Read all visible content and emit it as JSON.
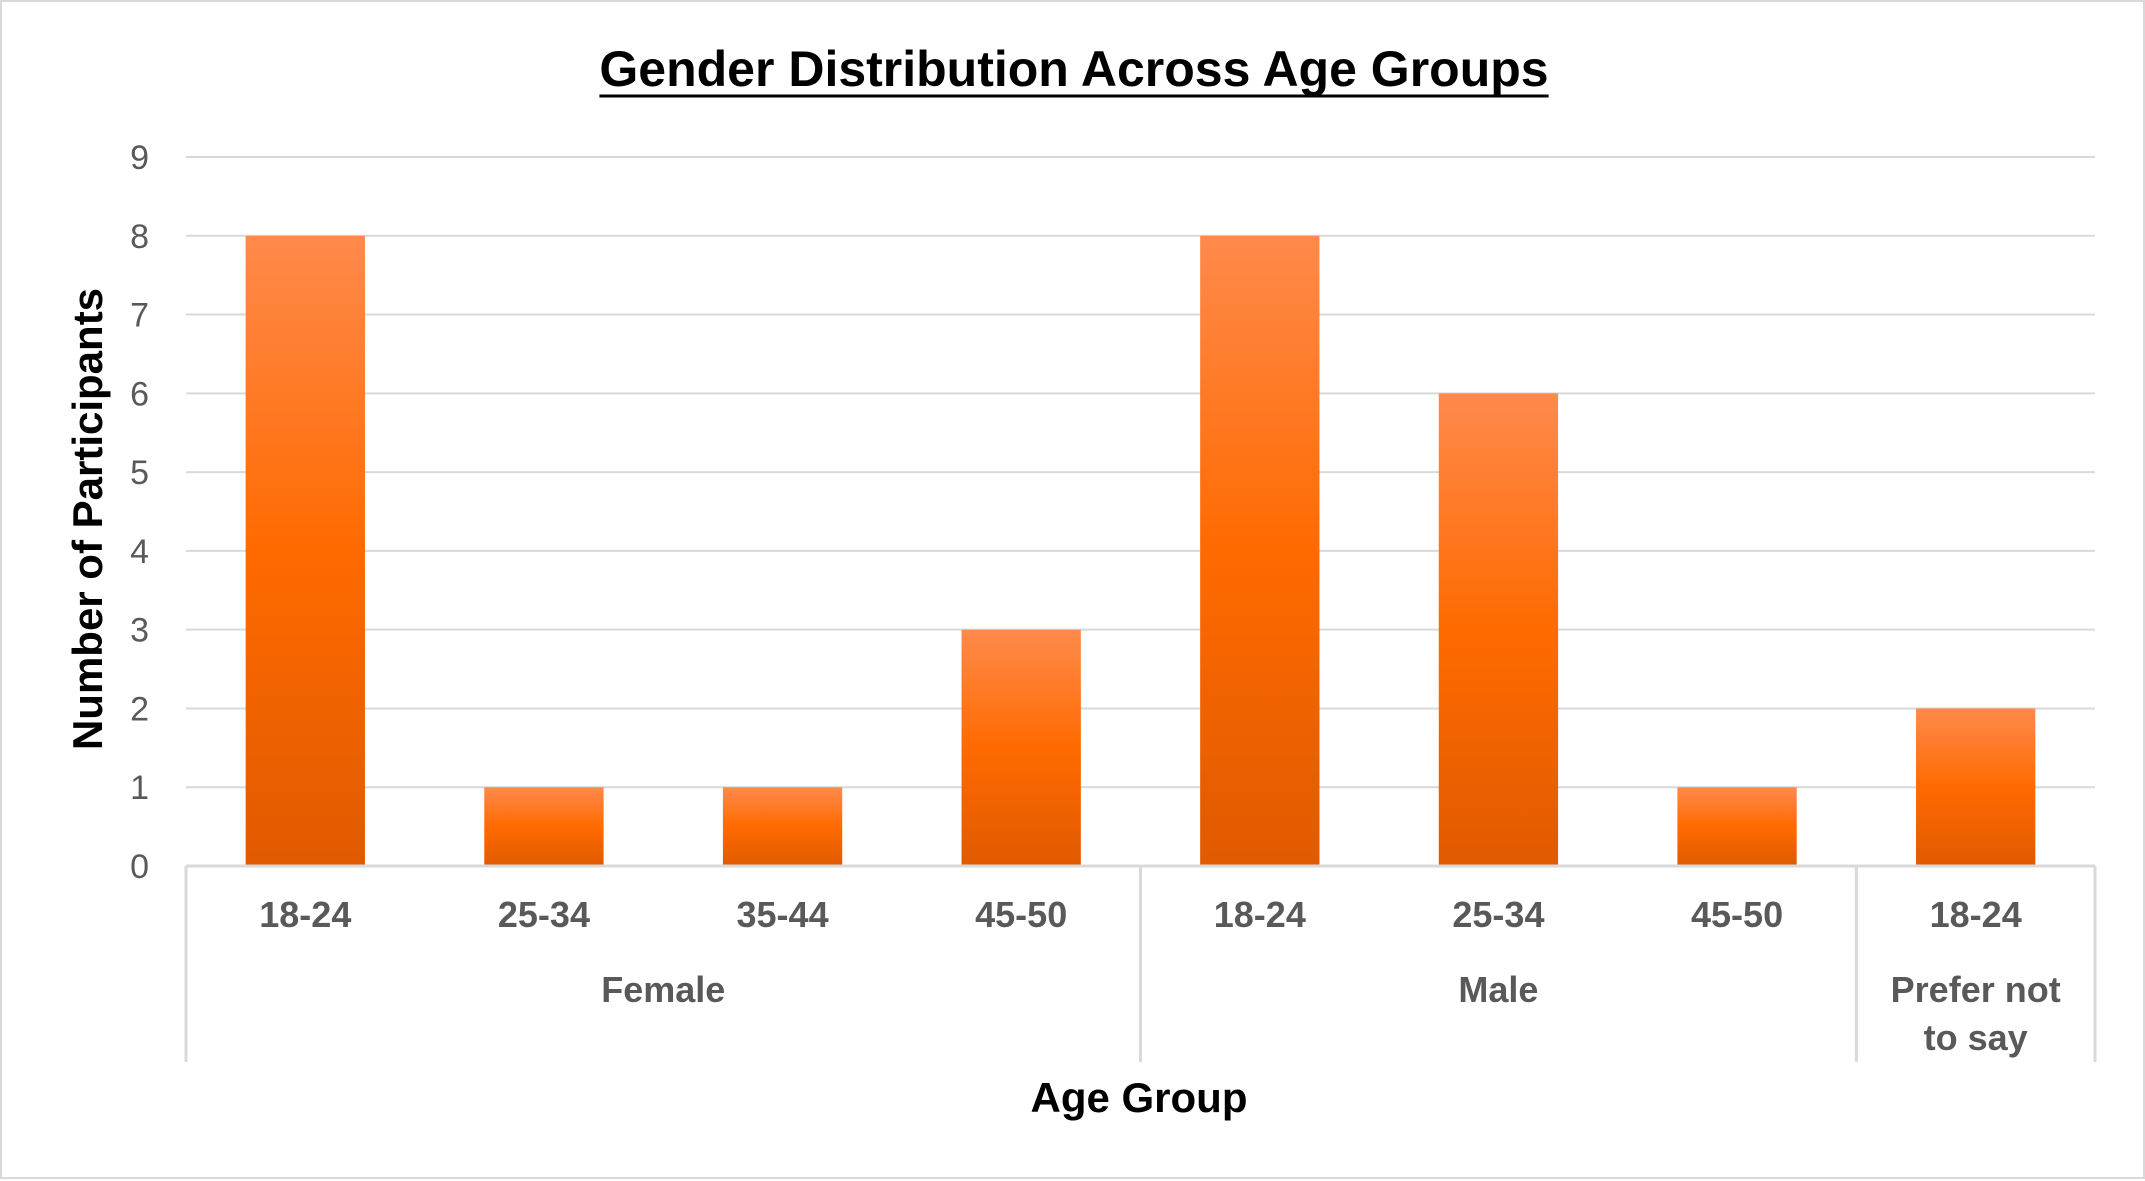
{
  "chart_data": {
    "type": "bar",
    "title": "Gender Distribution Across Age Groups",
    "xlabel": "Age Group",
    "ylabel": "Number of Participants",
    "ylim": [
      0,
      9
    ],
    "yticks": [
      "0",
      "1",
      "2",
      "3",
      "4",
      "5",
      "6",
      "7",
      "8",
      "9"
    ],
    "grid": true,
    "legend": "none",
    "groups": [
      {
        "name": "Female",
        "categories": [
          "18-24",
          "25-34",
          "35-44",
          "45-50"
        ],
        "values": [
          8,
          1,
          1,
          3
        ]
      },
      {
        "name": "Male",
        "categories": [
          "18-24",
          "25-34",
          "45-50"
        ],
        "values": [
          8,
          6,
          1
        ]
      },
      {
        "name": "Prefer not to say",
        "name_lines": [
          "Prefer not",
          "to say"
        ],
        "categories": [
          "18-24"
        ],
        "values": [
          2
        ]
      }
    ],
    "colors": {
      "bar_top": "#ff8a4c",
      "bar_mid": "#ff6a00",
      "bar_bottom": "#e05a00",
      "grid": "#d9d9d9",
      "tick_text": "#595959"
    }
  }
}
